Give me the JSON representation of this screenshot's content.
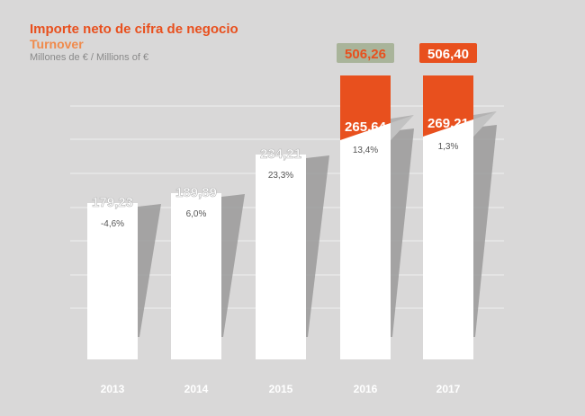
{
  "header": {
    "title": "Importe neto de cifra de negocio",
    "subtitle": "Turnover",
    "units": "Millones de € / Millions of €"
  },
  "colors": {
    "background": "#d9d8d8",
    "bar": "#ffffff",
    "bar_top": "#f2f2f2",
    "accent": "#e8501e",
    "shadow": "#9a9a9a",
    "label_highlight": "#a9b49a"
  },
  "chart_data": {
    "type": "bar",
    "categories": [
      "2013",
      "2014",
      "2015",
      "2016",
      "2017"
    ],
    "values": [
      179.23,
      189.89,
      234.21,
      265.64,
      269.21
    ],
    "value_labels": [
      "179,23",
      "189,89",
      "234,21",
      "265,64",
      "269,21"
    ],
    "growth_labels": [
      "-4,6%",
      "6,0%",
      "23,3%",
      "13,4%",
      "1,3%"
    ],
    "stacked_totals": [
      null,
      null,
      null,
      506.26,
      506.4
    ],
    "stacked_total_labels": [
      "",
      "",
      "",
      "506,26",
      "506,40"
    ],
    "ylim": [
      0,
      290
    ],
    "grid": true,
    "legend": "none"
  }
}
